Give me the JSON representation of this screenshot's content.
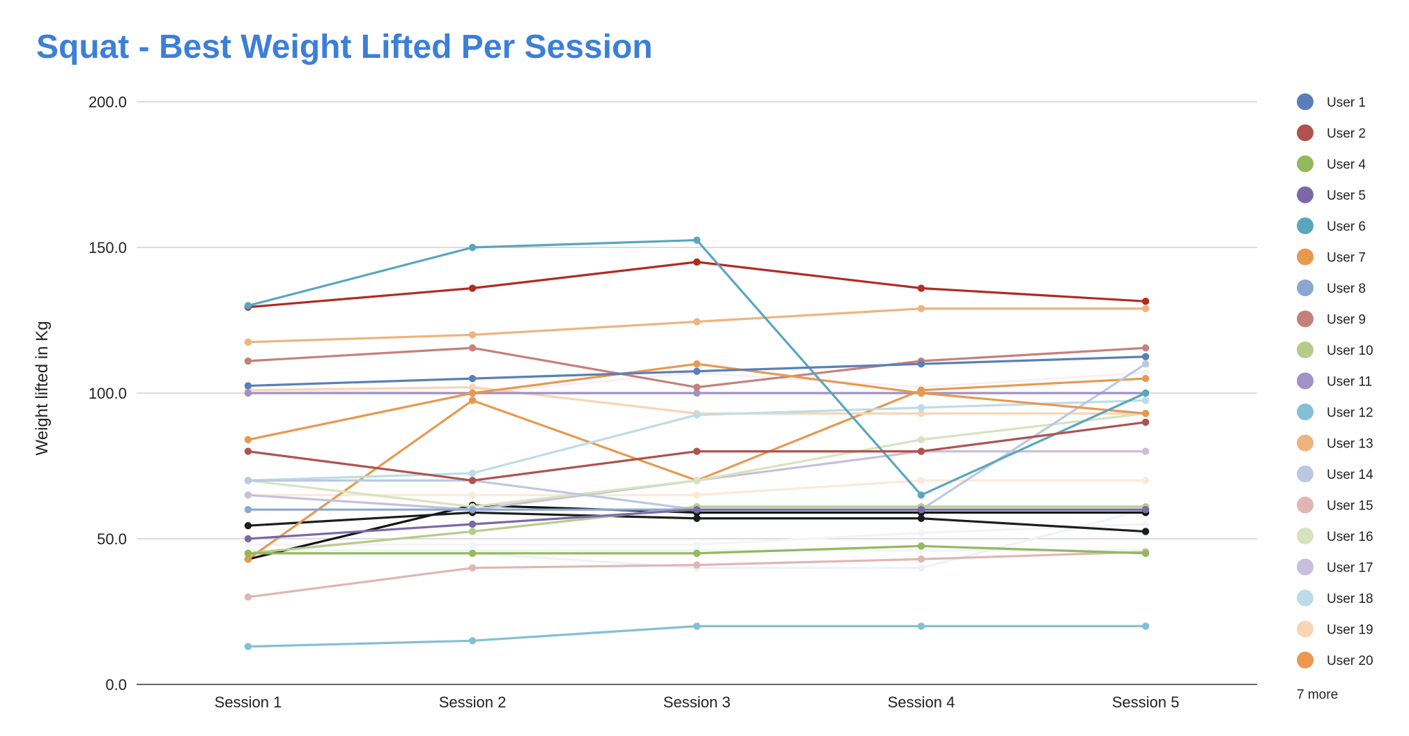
{
  "chart_data": {
    "type": "line",
    "title": "Squat - Best Weight Lifted Per Session",
    "xlabel": "",
    "ylabel": "Weight lifted in Kg",
    "categories": [
      "Session 1",
      "Session 2",
      "Session 3",
      "Session 4",
      "Session 5"
    ],
    "ylim": [
      0,
      200
    ],
    "yticks": [
      "0.0",
      "50.0",
      "100.0",
      "150.0",
      "200.0"
    ],
    "ytick_values": [
      0,
      50,
      100,
      150,
      200
    ],
    "grid": true,
    "legend_position": "right",
    "legend_more": "7 more",
    "series": [
      {
        "name": "User 1",
        "color": "#5a7fb8",
        "values": [
          102.5,
          105,
          107.5,
          110,
          112.5
        ]
      },
      {
        "name": "User 2",
        "color": "#b0524f",
        "values": [
          80,
          70,
          80,
          80,
          90
        ]
      },
      {
        "name": "User 4",
        "color": "#94b85c",
        "values": [
          45,
          45,
          45,
          47.5,
          45
        ]
      },
      {
        "name": "User 5",
        "color": "#7b68a8",
        "values": [
          50,
          55,
          60,
          60,
          60
        ]
      },
      {
        "name": "User 6",
        "color": "#5aa6be",
        "values": [
          130,
          150,
          152.5,
          65,
          100
        ]
      },
      {
        "name": "User 7",
        "color": "#e8994f",
        "values": [
          84,
          100,
          110,
          100,
          93
        ]
      },
      {
        "name": "User 8",
        "color": "#8aa7d4",
        "values": [
          60,
          60,
          60,
          60,
          60
        ]
      },
      {
        "name": "User 9",
        "color": "#c5807c",
        "values": [
          111,
          115.5,
          102,
          111,
          115.5
        ]
      },
      {
        "name": "User 10",
        "color": "#b5cc8c",
        "values": [
          45,
          52.5,
          61,
          61,
          61
        ]
      },
      {
        "name": "User 11",
        "color": "#a191c4",
        "values": [
          100,
          100,
          100,
          100,
          100
        ]
      },
      {
        "name": "User 12",
        "color": "#84c0d4",
        "values": [
          13,
          15,
          20,
          20,
          20
        ]
      },
      {
        "name": "User 13",
        "color": "#efb37f",
        "values": [
          117.5,
          120,
          124.5,
          129,
          129
        ]
      },
      {
        "name": "User 14",
        "color": "#bac9e0",
        "values": [
          70,
          70,
          60,
          60,
          110
        ]
      },
      {
        "name": "User 15",
        "color": "#dfb6b4",
        "values": [
          30,
          40,
          41,
          43,
          45.5
        ]
      },
      {
        "name": "User 16",
        "color": "#d7e3bf",
        "values": [
          70,
          61,
          70,
          84,
          93
        ]
      },
      {
        "name": "User 17",
        "color": "#c8bfdc",
        "values": [
          65,
          60,
          70,
          80,
          80
        ]
      },
      {
        "name": "User 18",
        "color": "#bcdde7",
        "values": [
          70,
          72.5,
          92.5,
          95,
          97.5
        ]
      },
      {
        "name": "User 19",
        "color": "#f7d5b5",
        "values": [
          101,
          102,
          93,
          93,
          93
        ]
      },
      {
        "name": "User 20",
        "color": "#e8994f",
        "values": [
          43,
          97.5,
          70,
          101,
          105
        ]
      },
      {
        "name": "",
        "color": "#b32a22",
        "values": [
          129.5,
          136,
          145,
          136,
          131.5
        ]
      },
      {
        "name": "",
        "color": "#1a1f1b",
        "values": [
          54.5,
          59,
          57,
          57,
          52.5
        ]
      },
      {
        "name": "",
        "color": "#121212",
        "values": [
          43,
          61.5,
          59,
          59,
          59
        ]
      },
      {
        "name": "",
        "color": "#fde9d9",
        "values": [
          65,
          65,
          65,
          70,
          70
        ]
      },
      {
        "name": "",
        "color": "#f4f4f8",
        "values": [
          48,
          48,
          48,
          52,
          55
        ]
      },
      {
        "name": "",
        "color": "#eef2f8",
        "values": [
          45,
          45,
          40,
          40,
          60
        ]
      },
      {
        "name": "",
        "color": "#f8f0f4",
        "values": [
          101,
          100,
          107,
          102,
          107
        ]
      },
      {
        "name": "",
        "color": "#eef6f8",
        "values": [
          46,
          46,
          46,
          46,
          46
        ]
      }
    ]
  }
}
